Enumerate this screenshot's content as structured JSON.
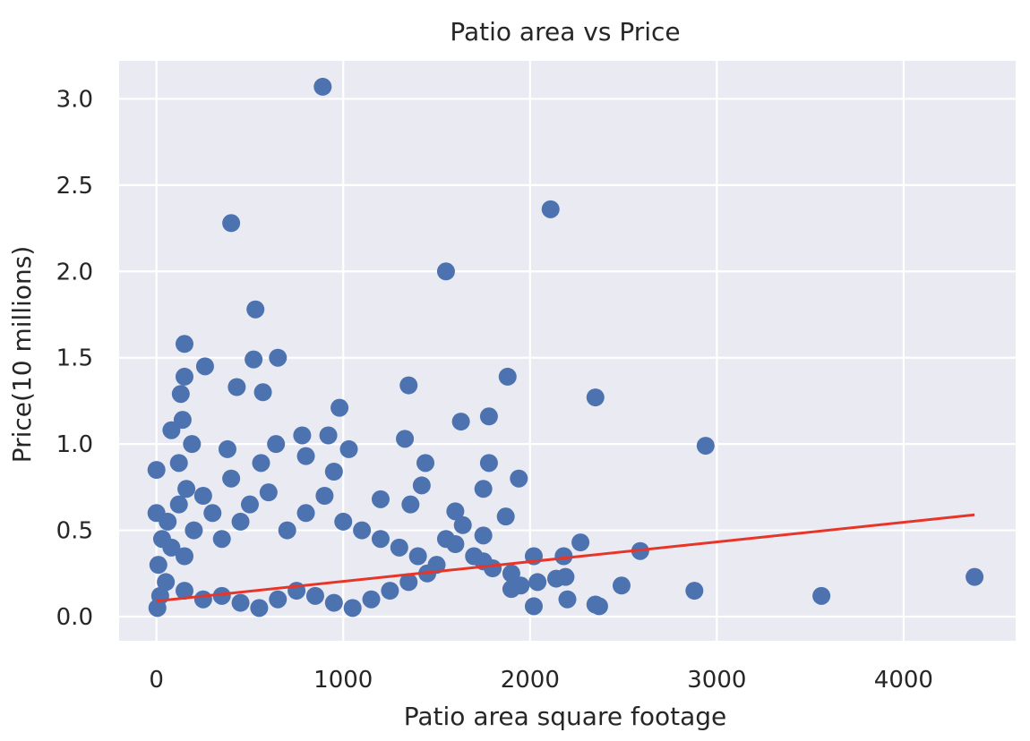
{
  "chart_data": {
    "type": "scatter",
    "title": "Patio area vs Price",
    "xlabel": "Patio area square footage",
    "ylabel": "Price(10 millions)",
    "xlim": [
      -200,
      4600
    ],
    "ylim": [
      -0.14,
      3.22
    ],
    "x_ticks": [
      0,
      1000,
      2000,
      3000,
      4000
    ],
    "x_tick_labels": [
      "0",
      "1000",
      "2000",
      "3000",
      "4000"
    ],
    "y_ticks": [
      0.0,
      0.5,
      1.0,
      1.5,
      2.0,
      2.5,
      3.0
    ],
    "y_tick_labels": [
      "0.0",
      "0.5",
      "1.0",
      "1.5",
      "2.0",
      "2.5",
      "3.0"
    ],
    "grid": true,
    "background": "#EAEAF2",
    "grid_color": "#FFFFFF",
    "series": [
      {
        "kind": "points",
        "color": "#4C72B0",
        "points": [
          [
            890,
            3.07
          ],
          [
            400,
            2.28
          ],
          [
            2110,
            2.36
          ],
          [
            1550,
            2.0
          ],
          [
            530,
            1.78
          ],
          [
            150,
            1.58
          ],
          [
            650,
            1.5
          ],
          [
            520,
            1.49
          ],
          [
            260,
            1.45
          ],
          [
            150,
            1.39
          ],
          [
            1880,
            1.39
          ],
          [
            130,
            1.29
          ],
          [
            430,
            1.33
          ],
          [
            570,
            1.3
          ],
          [
            1350,
            1.34
          ],
          [
            2350,
            1.27
          ],
          [
            980,
            1.21
          ],
          [
            1780,
            1.16
          ],
          [
            1630,
            1.13
          ],
          [
            140,
            1.14
          ],
          [
            80,
            1.08
          ],
          [
            780,
            1.05
          ],
          [
            920,
            1.05
          ],
          [
            190,
            1.0
          ],
          [
            640,
            1.0
          ],
          [
            1330,
            1.03
          ],
          [
            380,
            0.97
          ],
          [
            1030,
            0.97
          ],
          [
            2940,
            0.99
          ],
          [
            120,
            0.89
          ],
          [
            560,
            0.89
          ],
          [
            800,
            0.93
          ],
          [
            1440,
            0.89
          ],
          [
            1780,
            0.89
          ],
          [
            0,
            0.85
          ],
          [
            950,
            0.84
          ],
          [
            1940,
            0.8
          ],
          [
            160,
            0.74
          ],
          [
            1420,
            0.76
          ],
          [
            1750,
            0.74
          ],
          [
            1360,
            0.65
          ],
          [
            1200,
            0.68
          ],
          [
            1600,
            0.61
          ],
          [
            1870,
            0.58
          ],
          [
            1640,
            0.53
          ],
          [
            1750,
            0.47
          ],
          [
            2270,
            0.43
          ],
          [
            2590,
            0.38
          ],
          [
            2020,
            0.35
          ],
          [
            2180,
            0.35
          ],
          [
            1750,
            0.32
          ],
          [
            2190,
            0.23
          ],
          [
            2140,
            0.22
          ],
          [
            2040,
            0.2
          ],
          [
            1950,
            0.18
          ],
          [
            1900,
            0.16
          ],
          [
            2490,
            0.18
          ],
          [
            2880,
            0.15
          ],
          [
            2200,
            0.1
          ],
          [
            2020,
            0.06
          ],
          [
            2350,
            0.07
          ],
          [
            2370,
            0.06
          ],
          [
            3560,
            0.12
          ],
          [
            4380,
            0.23
          ],
          [
            0,
            0.6
          ],
          [
            30,
            0.45
          ],
          [
            60,
            0.55
          ],
          [
            10,
            0.3
          ],
          [
            50,
            0.2
          ],
          [
            20,
            0.12
          ],
          [
            5,
            0.05
          ],
          [
            80,
            0.4
          ],
          [
            120,
            0.65
          ],
          [
            150,
            0.35
          ],
          [
            200,
            0.5
          ],
          [
            250,
            0.7
          ],
          [
            300,
            0.6
          ],
          [
            350,
            0.45
          ],
          [
            400,
            0.8
          ],
          [
            450,
            0.55
          ],
          [
            500,
            0.65
          ],
          [
            600,
            0.72
          ],
          [
            700,
            0.5
          ],
          [
            800,
            0.6
          ],
          [
            900,
            0.7
          ],
          [
            1000,
            0.55
          ],
          [
            1100,
            0.5
          ],
          [
            1200,
            0.45
          ],
          [
            1300,
            0.4
          ],
          [
            1400,
            0.35
          ],
          [
            1500,
            0.3
          ],
          [
            1600,
            0.42
          ],
          [
            1700,
            0.35
          ],
          [
            1800,
            0.28
          ],
          [
            1900,
            0.25
          ],
          [
            1550,
            0.45
          ],
          [
            1450,
            0.25
          ],
          [
            1350,
            0.2
          ],
          [
            1250,
            0.15
          ],
          [
            1150,
            0.1
          ],
          [
            1050,
            0.05
          ],
          [
            950,
            0.08
          ],
          [
            850,
            0.12
          ],
          [
            750,
            0.15
          ],
          [
            650,
            0.1
          ],
          [
            550,
            0.05
          ],
          [
            450,
            0.08
          ],
          [
            350,
            0.12
          ],
          [
            250,
            0.1
          ],
          [
            150,
            0.15
          ]
        ]
      },
      {
        "kind": "fit_line",
        "color": "#E8352A",
        "points": [
          [
            0,
            0.09
          ],
          [
            4380,
            0.59
          ]
        ]
      }
    ]
  }
}
